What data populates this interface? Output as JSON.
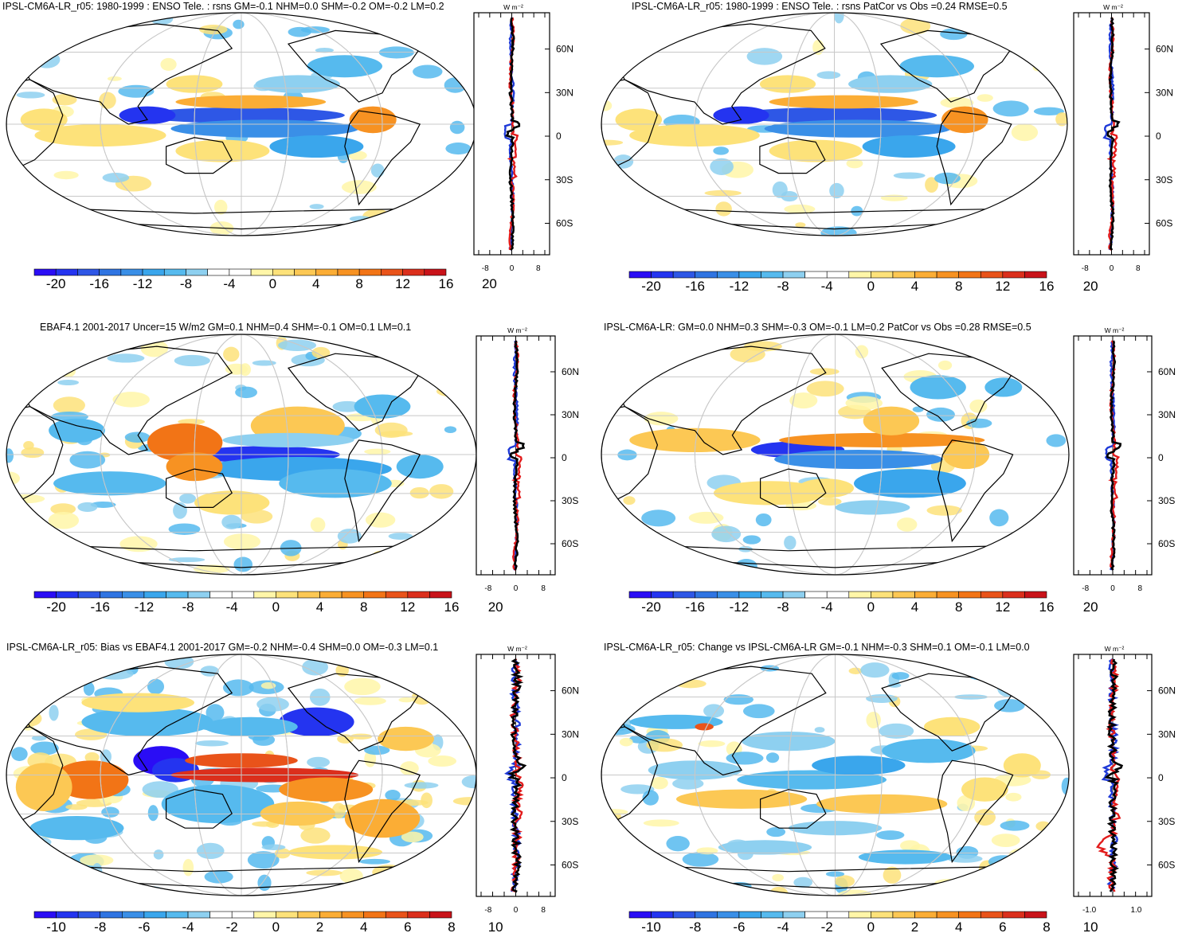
{
  "colors": {
    "cold": [
      "#2a0df5",
      "#2434f0",
      "#2e57e6",
      "#2f74e2",
      "#3a8fe7",
      "#3aa6ec",
      "#56baee",
      "#8ed0f0",
      "#ffffff"
    ],
    "warm": [
      "#ffffff",
      "#fff6a8",
      "#fde27a",
      "#fcc854",
      "#fbad35",
      "#f79222",
      "#f27416",
      "#e9531a",
      "#db2f1c",
      "#c9131a"
    ],
    "coast": "#000000",
    "grid": "#c8c8c8",
    "profile_model": "#e21b1b",
    "profile_obs": "#1f3ad8",
    "profile_mean": "#000000"
  },
  "profile_unit": "W m⁻²",
  "panels": [
    {
      "id": "ref-model-enso",
      "title": "IPSL-CM6A-LR_r05: 1980-1999 : ENSO Tele. : rsns GM=-0.1 NHM=0.0 SHM=-0.2 OM=-0.2 LM=0.2",
      "colorbar_labels": [
        "-20",
        "-16",
        "-12",
        "-8",
        "-4",
        "0",
        "4",
        "8",
        "12",
        "16",
        "20"
      ],
      "profile_ticks": [
        "-8",
        "0",
        "8"
      ],
      "lat_ticks": [
        "60N",
        "30N",
        "0",
        "30S",
        "60S"
      ],
      "profile_lines": {
        "model": true,
        "obs": true,
        "mean": true
      }
    },
    {
      "id": "ref-model-patcor",
      "title": "IPSL-CM6A-LR_r05: 1980-1999 : ENSO Tele. : rsns PatCor vs Obs =0.24 RMSE=0.5",
      "colorbar_labels": [
        "-20",
        "-16",
        "-12",
        "-8",
        "-4",
        "0",
        "4",
        "8",
        "12",
        "16",
        "20"
      ],
      "profile_ticks": [
        "-8",
        "0",
        "8"
      ],
      "lat_ticks": [
        "60N",
        "30N",
        "0",
        "30S",
        "60S"
      ],
      "profile_lines": {
        "model": true,
        "obs": true,
        "mean": true
      }
    },
    {
      "id": "obs-ebaf",
      "title": "EBAF4.1 2001-2017 Uncer=15 W/m2 GM=0.1 NHM=0.4 SHM=-0.1 OM=0.1 LM=0.1",
      "colorbar_labels": [
        "-20",
        "-16",
        "-12",
        "-8",
        "-4",
        "0",
        "4",
        "8",
        "12",
        "16",
        "20"
      ],
      "profile_ticks": [
        "-8",
        "0",
        "8"
      ],
      "lat_ticks": [
        "60N",
        "30N",
        "0",
        "30S",
        "60S"
      ],
      "profile_lines": {
        "model": true,
        "obs": true,
        "mean": true
      }
    },
    {
      "id": "model-ipsl",
      "title": "IPSL-CM6A-LR: GM=0.0 NHM=0.3 SHM=-0.3 OM=-0.1 LM=0.2 PatCor vs Obs =0.28 RMSE=0.5",
      "colorbar_labels": [
        "-20",
        "-16",
        "-12",
        "-8",
        "-4",
        "0",
        "4",
        "8",
        "12",
        "16",
        "20"
      ],
      "profile_ticks": [
        "-8",
        "0",
        "8"
      ],
      "lat_ticks": [
        "60N",
        "30N",
        "0",
        "30S",
        "60S"
      ],
      "profile_lines": {
        "model": true,
        "obs": true,
        "mean": true
      }
    },
    {
      "id": "bias",
      "title": "IPSL-CM6A-LR_r05: Bias vs EBAF4.1 2001-2017 GM=-0.2 NHM=-0.4 SHM=0.0 OM=-0.3 LM=0.1",
      "colorbar_labels": [
        "-10",
        "-8",
        "-6",
        "-4",
        "-2",
        "0",
        "2",
        "4",
        "6",
        "8",
        "10"
      ],
      "profile_ticks": [
        "-8",
        "0",
        "8"
      ],
      "lat_ticks": [
        "60N",
        "30N",
        "0",
        "30S",
        "60S"
      ],
      "profile_lines": {
        "model": true,
        "obs": true,
        "mean": true
      }
    },
    {
      "id": "change",
      "title": "IPSL-CM6A-LR_r05: Change vs IPSL-CM6A-LR GM=-0.1 NHM=-0.3 SHM=0.1 OM=-0.1 LM=0.0",
      "colorbar_labels": [
        "-10",
        "-8",
        "-6",
        "-4",
        "-2",
        "0",
        "2",
        "4",
        "6",
        "8",
        "10"
      ],
      "profile_ticks": [
        "-1.0",
        "1.0"
      ],
      "lat_ticks": [
        "60N",
        "30N",
        "0",
        "30S",
        "60S"
      ],
      "profile_lines": {
        "model": true,
        "obs": true,
        "mean": true
      }
    }
  ]
}
